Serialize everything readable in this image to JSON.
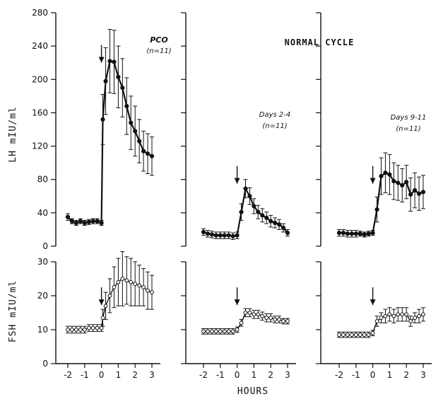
{
  "figure": {
    "header": "NORMAL CYCLE",
    "xlabel": "HOURS",
    "lh_ylabel": "LH mIU/ml",
    "fsh_ylabel": "FSH mIU/ml"
  },
  "chart_data": [
    {
      "type": "line",
      "hormone": "LH",
      "group_label": "PCO",
      "n_label": "(n=11)",
      "ylabel": "LH mIU/ml",
      "xlabel": "",
      "ylim": [
        0,
        280
      ],
      "yticks": [
        0,
        40,
        80,
        120,
        160,
        200,
        240,
        280
      ],
      "xlim": [
        -2.5,
        3.5
      ],
      "xticks": [
        -2,
        -1,
        0,
        1,
        2,
        3
      ],
      "marker": "filled",
      "arrow_x": 0,
      "x": [
        -2,
        -1.75,
        -1.5,
        -1.25,
        -1,
        -0.75,
        -0.5,
        -0.25,
        0,
        0.08,
        0.25,
        0.5,
        0.75,
        1,
        1.25,
        1.5,
        1.75,
        2,
        2.25,
        2.5,
        2.75,
        3
      ],
      "y": [
        35,
        30,
        28,
        30,
        28,
        29,
        30,
        30,
        28,
        152,
        198,
        222,
        221,
        203,
        190,
        168,
        148,
        138,
        126,
        114,
        111,
        108
      ],
      "err": [
        4,
        3,
        3,
        3,
        3,
        3,
        3,
        3,
        3,
        30,
        40,
        38,
        38,
        37,
        35,
        34,
        32,
        30,
        26,
        24,
        24,
        23
      ]
    },
    {
      "type": "line",
      "hormone": "LH",
      "group_label": "Days 2-4",
      "n_label": "(n=11)",
      "ylabel": "",
      "xlabel": "",
      "ylim": [
        0,
        280
      ],
      "xlim": [
        -2.5,
        3.5
      ],
      "xticks": [
        -2,
        -1,
        0,
        1,
        2,
        3
      ],
      "marker": "filled",
      "arrow_x": 0,
      "x": [
        -2,
        -1.75,
        -1.5,
        -1.25,
        -1,
        -0.75,
        -0.5,
        -0.25,
        0,
        0.25,
        0.5,
        0.75,
        1,
        1.25,
        1.5,
        1.75,
        2,
        2.25,
        2.5,
        2.75,
        3
      ],
      "y": [
        17,
        15,
        14,
        13,
        13,
        13,
        13,
        12,
        13,
        41,
        69,
        60,
        48,
        41,
        37,
        34,
        30,
        28,
        26,
        22,
        16
      ],
      "err": [
        4,
        4,
        4,
        4,
        4,
        4,
        4,
        4,
        4,
        10,
        11,
        10,
        9,
        8,
        8,
        7,
        7,
        6,
        6,
        5,
        4
      ]
    },
    {
      "type": "line",
      "hormone": "LH",
      "group_label": "Days 9-11",
      "n_label": "(n=11)",
      "ylabel": "",
      "xlabel": "",
      "ylim": [
        0,
        280
      ],
      "xlim": [
        -2.5,
        3.5
      ],
      "xticks": [
        -2,
        -1,
        0,
        1,
        2,
        3
      ],
      "marker": "filled",
      "arrow_x": 0,
      "x": [
        -2,
        -1.75,
        -1.5,
        -1.25,
        -1,
        -0.75,
        -0.5,
        -0.25,
        0,
        0.25,
        0.5,
        0.75,
        1,
        1.25,
        1.5,
        1.75,
        2,
        2.25,
        2.5,
        2.75,
        3
      ],
      "y": [
        16,
        16,
        15,
        15,
        15,
        15,
        14,
        15,
        16,
        44,
        84,
        88,
        86,
        78,
        76,
        73,
        77,
        62,
        67,
        63,
        65
      ],
      "err": [
        4,
        4,
        4,
        4,
        4,
        3,
        3,
        3,
        3,
        15,
        22,
        24,
        24,
        22,
        21,
        20,
        20,
        20,
        21,
        20,
        20
      ]
    },
    {
      "type": "line",
      "hormone": "FSH",
      "ylabel": "FSH mIU/ml",
      "xlabel": "",
      "ylim": [
        0,
        30
      ],
      "yticks": [
        0,
        10,
        20,
        30
      ],
      "xlim": [
        -2.5,
        3.5
      ],
      "xticks": [
        -2,
        -1,
        0,
        1,
        2,
        3
      ],
      "marker": "open",
      "arrow_x": 0,
      "x": [
        -2,
        -1.75,
        -1.5,
        -1.25,
        -1,
        -0.75,
        -0.5,
        -0.25,
        0,
        0.08,
        0.25,
        0.5,
        0.75,
        1,
        1.25,
        1.5,
        1.75,
        2,
        2.25,
        2.5,
        2.75,
        3
      ],
      "y": [
        10,
        10,
        10,
        10,
        10,
        10.5,
        10.5,
        10.5,
        10.5,
        13.5,
        17,
        20,
        22.5,
        24,
        25,
        24.5,
        24,
        23.5,
        23,
        22.5,
        21.5,
        21
      ],
      "err": [
        1,
        1,
        1,
        1,
        1,
        1,
        1,
        1,
        1,
        2.5,
        4,
        5,
        6,
        7,
        8,
        7,
        7,
        6.5,
        6,
        5.5,
        5.5,
        5
      ]
    },
    {
      "type": "line",
      "hormone": "FSH",
      "ylabel": "",
      "xlabel": "",
      "ylim": [
        0,
        30
      ],
      "xlim": [
        -2.5,
        3.5
      ],
      "xticks": [
        -2,
        -1,
        0,
        1,
        2,
        3
      ],
      "marker": "open",
      "arrow_x": 0,
      "x": [
        -2,
        -1.75,
        -1.5,
        -1.25,
        -1,
        -0.75,
        -0.5,
        -0.25,
        0,
        0.25,
        0.5,
        0.75,
        1,
        1.25,
        1.5,
        1.75,
        2,
        2.25,
        2.5,
        2.75,
        3
      ],
      "y": [
        9.5,
        9.5,
        9.5,
        9.5,
        9.5,
        9.5,
        9.5,
        9.5,
        10,
        12,
        15,
        15,
        14.5,
        14.5,
        14,
        13.5,
        13.5,
        13,
        13,
        12.5,
        12.5
      ],
      "err": [
        0.8,
        0.8,
        0.8,
        0.8,
        0.8,
        0.8,
        0.8,
        0.8,
        0.8,
        1,
        1.2,
        1.2,
        1.2,
        1.2,
        1.2,
        1.2,
        1.2,
        1,
        1,
        0.8,
        0.8
      ]
    },
    {
      "type": "line",
      "hormone": "FSH",
      "ylabel": "",
      "xlabel": "",
      "ylim": [
        0,
        30
      ],
      "xlim": [
        -2.5,
        3.5
      ],
      "xticks": [
        -2,
        -1,
        0,
        1,
        2,
        3
      ],
      "marker": "open",
      "arrow_x": 0,
      "x": [
        -2,
        -1.75,
        -1.5,
        -1.25,
        -1,
        -0.75,
        -0.5,
        -0.25,
        0,
        0.25,
        0.5,
        0.75,
        1,
        1.25,
        1.5,
        1.75,
        2,
        2.25,
        2.5,
        2.75,
        3
      ],
      "y": [
        8.5,
        8.5,
        8.5,
        8.5,
        8.5,
        8.5,
        8.5,
        8.5,
        9,
        12.5,
        13.5,
        14,
        14.5,
        14,
        14.5,
        14.5,
        14.5,
        12.5,
        13.5,
        14,
        14.5
      ],
      "err": [
        0.8,
        0.8,
        0.8,
        0.8,
        0.8,
        0.8,
        0.8,
        0.8,
        0.8,
        1.5,
        1.5,
        2,
        2,
        2,
        2,
        2,
        2,
        1.5,
        1.5,
        2,
        2
      ]
    }
  ]
}
